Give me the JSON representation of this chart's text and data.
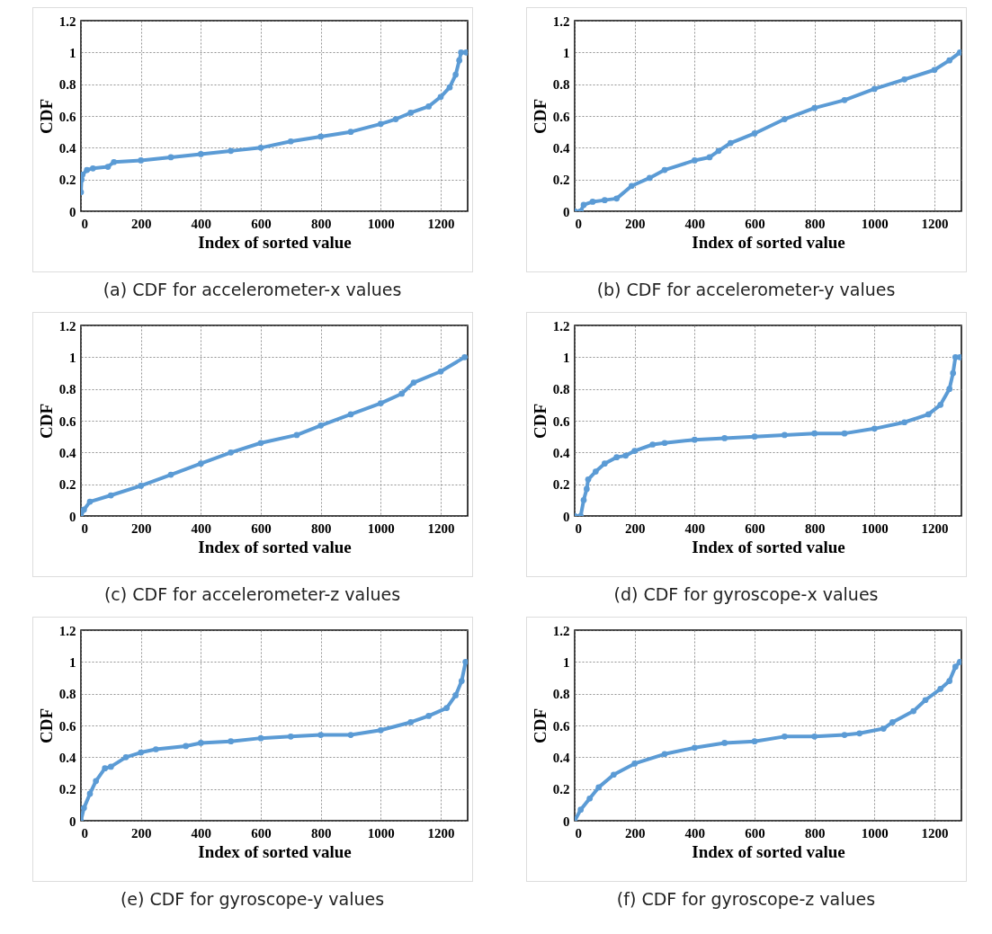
{
  "chart_data": [
    {
      "type": "line",
      "xlabel": "Index of sorted value",
      "ylabel": "CDF",
      "color": "#5b9bd5",
      "marker": "circle",
      "grid": true,
      "xlim": [
        0,
        1290
      ],
      "ylim": [
        0,
        1.2
      ],
      "xticks": [
        0,
        200,
        400,
        600,
        800,
        1000,
        1200
      ],
      "yticks": [
        0,
        0.2,
        0.4,
        0.6,
        0.8,
        1,
        1.2
      ],
      "annotations": [
        "(a) CDF for accelerometer-x values"
      ],
      "x": [
        0,
        2,
        5,
        20,
        40,
        90,
        110,
        200,
        300,
        400,
        500,
        600,
        700,
        800,
        900,
        1000,
        1050,
        1100,
        1160,
        1200,
        1230,
        1250,
        1262,
        1268,
        1285
      ],
      "values": [
        0.12,
        0.2,
        0.23,
        0.26,
        0.27,
        0.28,
        0.31,
        0.32,
        0.34,
        0.36,
        0.38,
        0.4,
        0.44,
        0.47,
        0.5,
        0.55,
        0.58,
        0.62,
        0.66,
        0.72,
        0.78,
        0.86,
        0.95,
        1.0,
        1.0
      ]
    },
    {
      "type": "line",
      "xlabel": "Index of sorted value",
      "ylabel": "CDF",
      "color": "#5b9bd5",
      "marker": "circle",
      "grid": true,
      "xlim": [
        0,
        1290
      ],
      "ylim": [
        0,
        1.2
      ],
      "xticks": [
        0,
        200,
        400,
        600,
        800,
        1000,
        1200
      ],
      "yticks": [
        0,
        0.2,
        0.4,
        0.6,
        0.8,
        1,
        1.2
      ],
      "annotations": [
        "(b) CDF for accelerometer-y values"
      ],
      "x": [
        0,
        20,
        30,
        60,
        100,
        140,
        190,
        250,
        300,
        400,
        450,
        480,
        520,
        600,
        700,
        800,
        900,
        1000,
        1100,
        1200,
        1250,
        1285
      ],
      "values": [
        0,
        0,
        0.04,
        0.06,
        0.07,
        0.08,
        0.16,
        0.21,
        0.26,
        0.32,
        0.34,
        0.38,
        0.43,
        0.49,
        0.58,
        0.65,
        0.7,
        0.77,
        0.83,
        0.89,
        0.95,
        1.0
      ]
    },
    {
      "type": "line",
      "xlabel": "Index of sorted value",
      "ylabel": "CDF",
      "color": "#5b9bd5",
      "marker": "circle",
      "grid": true,
      "xlim": [
        0,
        1290
      ],
      "ylim": [
        0,
        1.2
      ],
      "xticks": [
        0,
        200,
        400,
        600,
        800,
        1000,
        1200
      ],
      "yticks": [
        0,
        0.2,
        0.4,
        0.6,
        0.8,
        1,
        1.2
      ],
      "annotations": [
        "(c) CDF for accelerometer-z values"
      ],
      "x": [
        0,
        10,
        30,
        100,
        200,
        300,
        400,
        500,
        600,
        720,
        800,
        900,
        1000,
        1070,
        1110,
        1200,
        1280
      ],
      "values": [
        0,
        0.04,
        0.09,
        0.13,
        0.19,
        0.26,
        0.33,
        0.4,
        0.46,
        0.51,
        0.57,
        0.64,
        0.71,
        0.77,
        0.84,
        0.91,
        1.0
      ]
    },
    {
      "type": "line",
      "xlabel": "Index of sorted value",
      "ylabel": "CDF",
      "color": "#5b9bd5",
      "marker": "circle",
      "grid": true,
      "xlim": [
        0,
        1290
      ],
      "ylim": [
        0,
        1.2
      ],
      "xticks": [
        0,
        200,
        400,
        600,
        800,
        1000,
        1200
      ],
      "yticks": [
        0,
        0.2,
        0.4,
        0.6,
        0.8,
        1,
        1.2
      ],
      "annotations": [
        "(d) CDF for gyroscope-x values"
      ],
      "x": [
        0,
        20,
        30,
        40,
        45,
        70,
        100,
        140,
        170,
        200,
        260,
        300,
        400,
        500,
        600,
        700,
        800,
        900,
        1000,
        1100,
        1180,
        1220,
        1250,
        1262,
        1270,
        1285
      ],
      "values": [
        0,
        0,
        0.1,
        0.17,
        0.23,
        0.28,
        0.33,
        0.37,
        0.38,
        0.41,
        0.45,
        0.46,
        0.48,
        0.49,
        0.5,
        0.51,
        0.52,
        0.52,
        0.55,
        0.59,
        0.64,
        0.7,
        0.8,
        0.9,
        1.0,
        1.0
      ]
    },
    {
      "type": "line",
      "xlabel": "Index of sorted value",
      "ylabel": "CDF",
      "color": "#5b9bd5",
      "marker": "circle",
      "grid": true,
      "xlim": [
        0,
        1290
      ],
      "ylim": [
        0,
        1.2
      ],
      "xticks": [
        0,
        200,
        400,
        600,
        800,
        1000,
        1200
      ],
      "yticks": [
        0,
        0.2,
        0.4,
        0.6,
        0.8,
        1,
        1.2
      ],
      "annotations": [
        "(e) CDF for gyroscope-y values"
      ],
      "x": [
        0,
        10,
        30,
        50,
        80,
        100,
        150,
        200,
        250,
        350,
        400,
        500,
        600,
        700,
        800,
        900,
        1000,
        1100,
        1160,
        1220,
        1250,
        1270,
        1283
      ],
      "values": [
        0,
        0.08,
        0.17,
        0.25,
        0.33,
        0.34,
        0.4,
        0.43,
        0.45,
        0.47,
        0.49,
        0.5,
        0.52,
        0.53,
        0.54,
        0.54,
        0.57,
        0.62,
        0.66,
        0.71,
        0.79,
        0.88,
        1.0
      ]
    },
    {
      "type": "line",
      "xlabel": "Index of sorted value",
      "ylabel": "CDF",
      "color": "#5b9bd5",
      "marker": "circle",
      "grid": true,
      "xlim": [
        0,
        1290
      ],
      "ylim": [
        0,
        1.2
      ],
      "xticks": [
        0,
        200,
        400,
        600,
        800,
        1000,
        1200
      ],
      "yticks": [
        0,
        0.2,
        0.4,
        0.6,
        0.8,
        1,
        1.2
      ],
      "annotations": [
        "(f) CDF for gyroscope-z values"
      ],
      "x": [
        0,
        20,
        50,
        80,
        130,
        200,
        300,
        400,
        500,
        600,
        700,
        800,
        900,
        950,
        1030,
        1060,
        1130,
        1170,
        1220,
        1250,
        1270,
        1285
      ],
      "values": [
        0,
        0.07,
        0.14,
        0.21,
        0.29,
        0.36,
        0.42,
        0.46,
        0.49,
        0.5,
        0.53,
        0.53,
        0.54,
        0.55,
        0.58,
        0.62,
        0.69,
        0.76,
        0.83,
        0.88,
        0.97,
        1.0
      ]
    }
  ]
}
